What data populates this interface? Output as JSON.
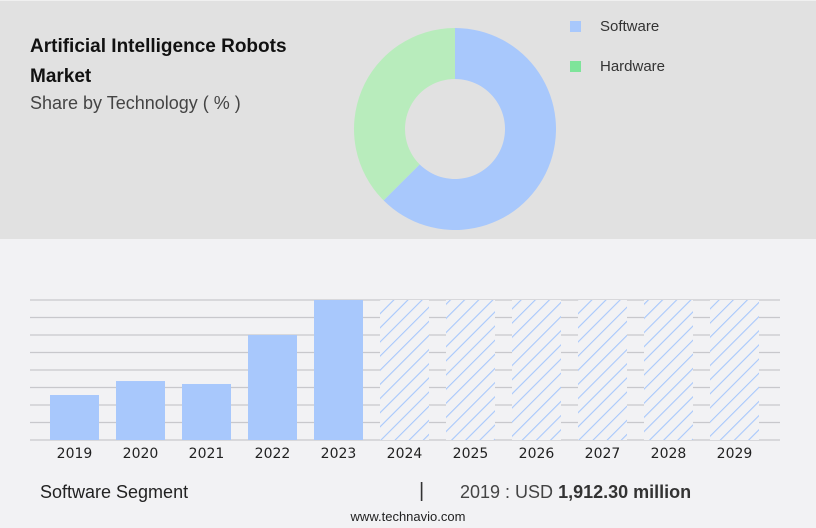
{
  "header": {
    "title_line1": "Artificial Intelligence Robots",
    "title_line2": "Market",
    "subtitle": "Share by Technology ( % )"
  },
  "legend": [
    {
      "label": "Software",
      "color": "#a8c8fc"
    },
    {
      "label": "Hardware",
      "color": "#7ee49a"
    }
  ],
  "footer": {
    "segment": "Software Segment",
    "separator": "|",
    "year_label": "2019 : USD",
    "value": "1,912.30 million",
    "source": "www.technavio.com"
  },
  "chart_data": [
    {
      "type": "pie",
      "subtype": "donut",
      "title": "Artificial Intelligence Robots Market",
      "subtitle": "Share by Technology ( % )",
      "categories": [
        "Software",
        "Hardware"
      ],
      "values": [
        62.5,
        37.5
      ],
      "colors": [
        "#a8c8fc",
        "#b8ecbc"
      ],
      "legend_position": "right"
    },
    {
      "type": "bar",
      "title": "Software Segment",
      "categories": [
        "2019",
        "2020",
        "2021",
        "2022",
        "2023",
        "2024",
        "2025",
        "2026",
        "2027",
        "2028",
        "2029"
      ],
      "values": [
        1912.3,
        2506,
        2380,
        4462,
        5949,
        null,
        null,
        null,
        null,
        null,
        null
      ],
      "forecast": [
        false,
        false,
        false,
        false,
        false,
        true,
        true,
        true,
        true,
        true,
        true
      ],
      "units": "USD million",
      "grid": true,
      "xlabel": "",
      "ylabel": "",
      "color": "#a8c8fc",
      "annotation": "2019 : USD 1,912.30 million"
    }
  ]
}
